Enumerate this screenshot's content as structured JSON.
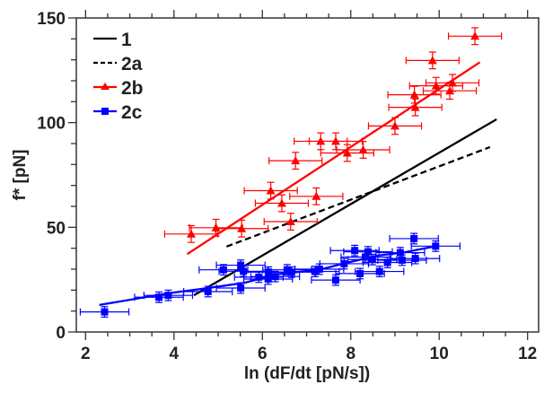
{
  "chart_data": {
    "type": "scatter",
    "title": "",
    "xlabel": "ln (dF/dt [pN/s])",
    "ylabel": "f* [pN]",
    "xlim": [
      1.79,
      12.25
    ],
    "ylim": [
      0,
      150
    ],
    "xticks": [
      2,
      4,
      6,
      8,
      10,
      12
    ],
    "yticks": [
      0,
      50,
      100,
      150
    ],
    "grid": false,
    "legend_position": "top-left",
    "series": [
      {
        "name": "1",
        "kind": "line",
        "style": "solid",
        "color": "#000000",
        "x": [
          4.45,
          11.3
        ],
        "y": [
          17.5,
          101.6
        ]
      },
      {
        "name": "2a",
        "kind": "line",
        "style": "dashed",
        "color": "#000000",
        "x": [
          5.19,
          11.15
        ],
        "y": [
          40.8,
          88.3
        ]
      },
      {
        "name": "2b",
        "kind": "scatter+fit",
        "marker": "triangle",
        "color": "#ff0000",
        "x": [
          4.39,
          4.95,
          5.53,
          6.19,
          6.44,
          7.22,
          6.64,
          6.75,
          7.32,
          7.66,
          7.92,
          8.28,
          9.0,
          9.46,
          9.44,
          9.85,
          9.93,
          10.24,
          10.3,
          10.81
        ],
        "y": [
          46.8,
          49.8,
          49.4,
          67.5,
          61.5,
          64.8,
          52.7,
          81.8,
          91.1,
          91.1,
          85.5,
          87.0,
          98.4,
          107.3,
          113.3,
          129.7,
          117.6,
          115.2,
          119.0,
          141.3
        ],
        "xerr": 0.6,
        "yerr": 4,
        "fit": {
          "x": [
            4.3,
            10.92
          ],
          "y": [
            37.2,
            128.8
          ]
        }
      },
      {
        "name": "2c",
        "kind": "scatter+fit",
        "marker": "square",
        "color": "#0000ff",
        "x": [
          2.43,
          3.66,
          3.87,
          4.77,
          5.12,
          5.51,
          5.57,
          5.51,
          5.92,
          6.14,
          6.13,
          6.29,
          6.56,
          6.66,
          7.19,
          7.29,
          7.66,
          7.85,
          8.09,
          8.21,
          8.39,
          8.33,
          8.49,
          8.65,
          8.83,
          9.12,
          9.16,
          9.46,
          9.43,
          9.92
        ],
        "y": [
          9.6,
          16.6,
          17.5,
          19.3,
          29.7,
          31.9,
          29.0,
          21.0,
          26.2,
          28.6,
          25.3,
          26.5,
          29.7,
          28.6,
          28.9,
          30.0,
          24.8,
          32.6,
          38.9,
          27.9,
          38.3,
          35.8,
          34.6,
          28.9,
          33.2,
          37.9,
          34.3,
          35.1,
          44.6,
          41.0
        ],
        "xerr": 0.55,
        "yerr": 2.5,
        "fit": {
          "x": [
            2.31,
            3.87,
            4.77,
            5.6,
            6.3,
            7.3,
            7.9,
            8.6,
            9.2,
            9.92
          ],
          "y": [
            12.9,
            18.5,
            21.0,
            23.5,
            27.5,
            29.8,
            33.0,
            36.5,
            38.0,
            41.0
          ]
        }
      }
    ]
  }
}
